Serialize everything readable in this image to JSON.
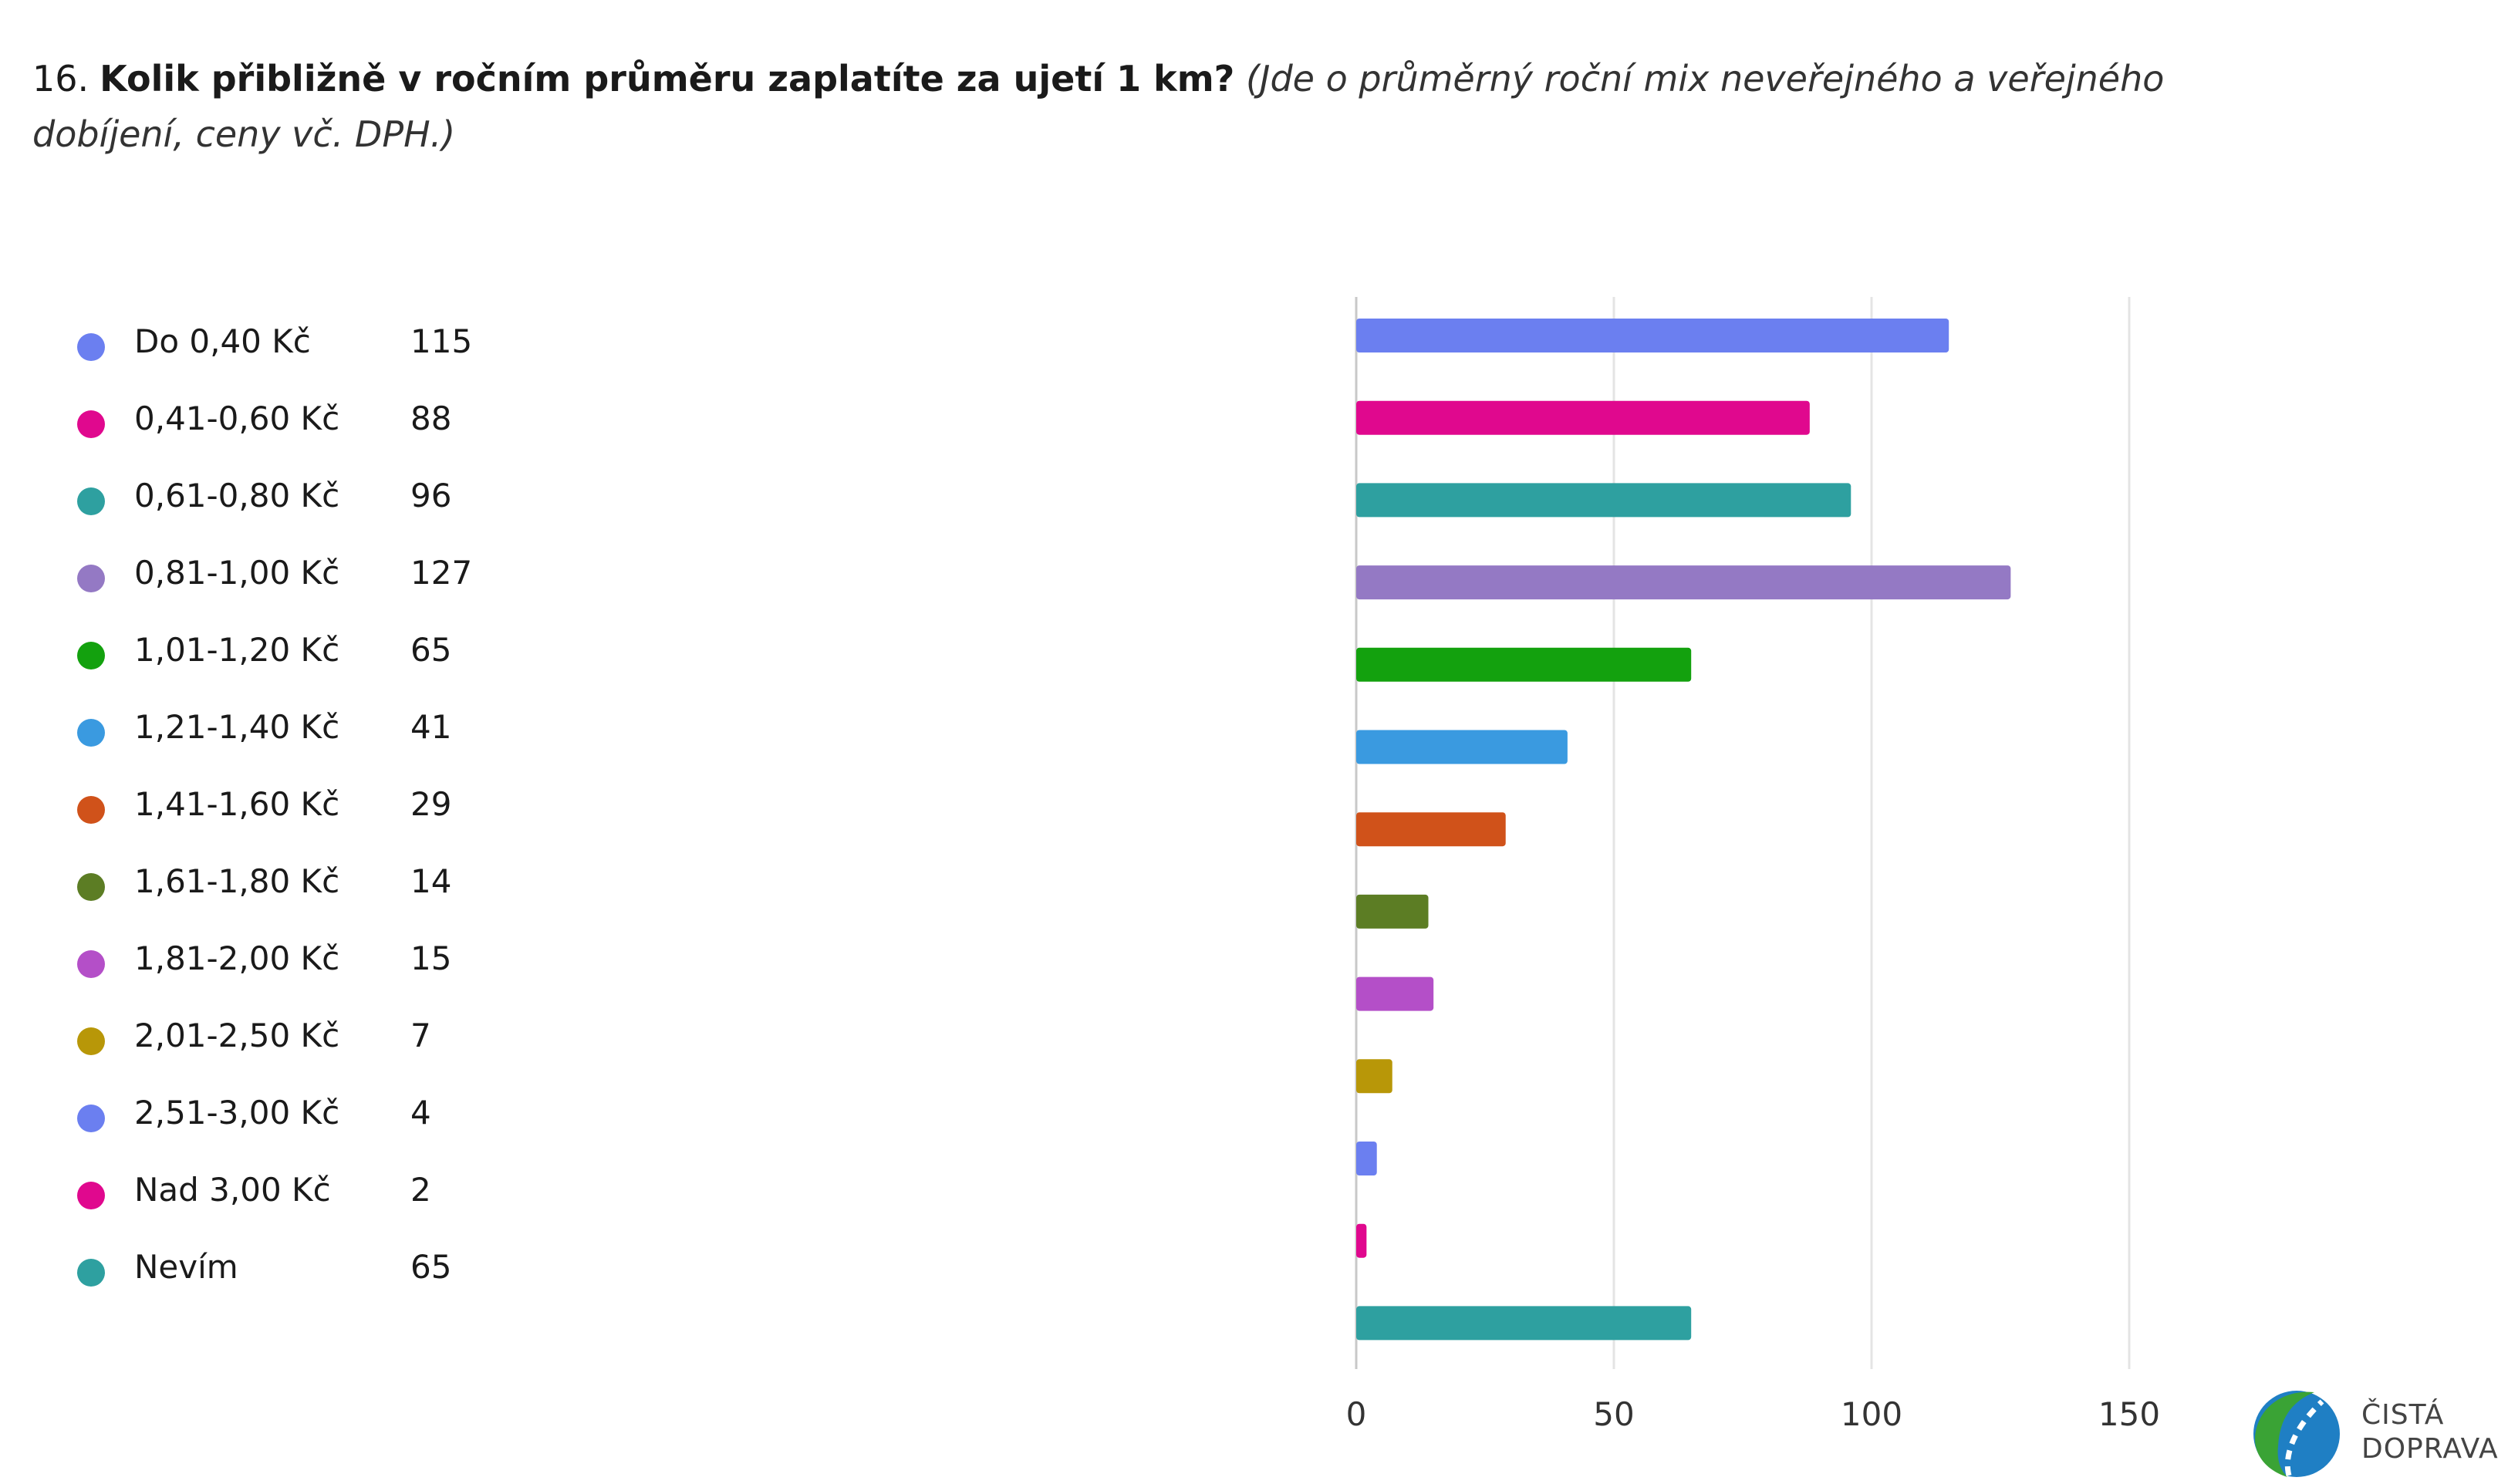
{
  "question": {
    "number": "16.",
    "text": "Kolik přibližně v ročním průměru zaplatíte za ujetí 1 km?",
    "hint": "(Jde o průměrný roční mix neveřejného a veřejného dobíjení, ceny vč. DPH.)"
  },
  "chart_data": {
    "type": "bar",
    "orientation": "horizontal",
    "categories": [
      "Do 0,40 Kč",
      "0,41-0,60 Kč",
      "0,61-0,80 Kč",
      "0,81-1,00 Kč",
      "1,01-1,20 Kč",
      "1,21-1,40 Kč",
      "1,41-1,60 Kč",
      "1,61-1,80 Kč",
      "1,81-2,00 Kč",
      "2,01-2,50 Kč",
      "2,51-3,00 Kč",
      "Nad 3,00 Kč",
      "Nevím"
    ],
    "values": [
      115,
      88,
      96,
      127,
      65,
      41,
      29,
      14,
      15,
      7,
      4,
      2,
      65
    ],
    "colors": [
      "#6b7ff0",
      "#e0088e",
      "#2ea0a0",
      "#9479c4",
      "#13a10e",
      "#3a9ae0",
      "#d0521a",
      "#5c7d24",
      "#b44fc8",
      "#b89708",
      "#6b7ff0",
      "#e0088e",
      "#2ea0a0"
    ],
    "x_ticks": [
      0,
      50,
      100,
      150
    ],
    "xlim": [
      0,
      150
    ],
    "grid": true,
    "legend_position": "left"
  },
  "logo": {
    "line1": "ČISTÁ",
    "line2": "DOPRAVA",
    "icon": "leaf-road-logo-icon"
  }
}
